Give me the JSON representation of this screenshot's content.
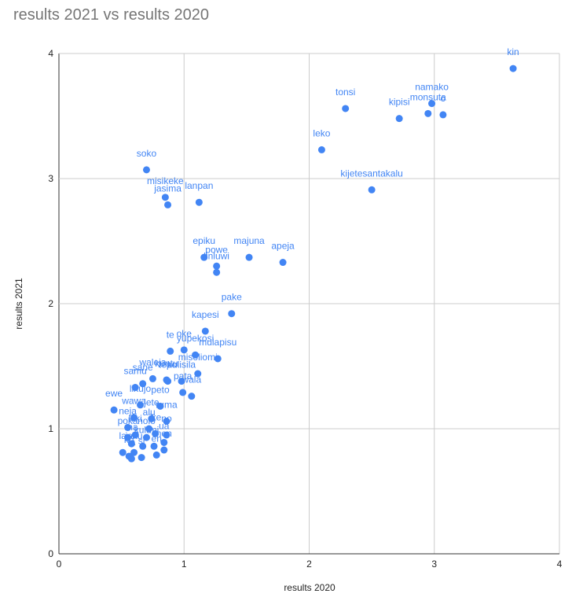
{
  "chart_data": {
    "type": "scatter",
    "title": "results 2021 vs results 2020",
    "xlabel": "results 2020",
    "ylabel": "results 2021",
    "xlim": [
      0,
      4
    ],
    "ylim": [
      0,
      4
    ],
    "x_ticks": [
      "0",
      "1",
      "2",
      "3",
      "4"
    ],
    "y_ticks": [
      "0",
      "1",
      "2",
      "3",
      "4"
    ],
    "grid": true,
    "point_color": "#4285f4",
    "points": [
      {
        "label": "kin",
        "x": 3.63,
        "y": 3.88
      },
      {
        "label": "namako",
        "x": 2.98,
        "y": 3.6
      },
      {
        "label": "monsuta",
        "x": 2.95,
        "y": 3.52
      },
      {
        "label": "o",
        "x": 3.07,
        "y": 3.51
      },
      {
        "label": "tonsi",
        "x": 2.29,
        "y": 3.56
      },
      {
        "label": "kipisi",
        "x": 2.72,
        "y": 3.48
      },
      {
        "label": "leko",
        "x": 2.1,
        "y": 3.23
      },
      {
        "label": "kijetesantakalu",
        "x": 2.5,
        "y": 2.91
      },
      {
        "label": "soko",
        "x": 0.7,
        "y": 3.07
      },
      {
        "label": "misikeke",
        "x": 0.85,
        "y": 2.85
      },
      {
        "label": "jasima",
        "x": 0.87,
        "y": 2.79
      },
      {
        "label": "lanpan",
        "x": 1.12,
        "y": 2.81
      },
      {
        "label": "epiku",
        "x": 1.16,
        "y": 2.37
      },
      {
        "label": "majuna",
        "x": 1.52,
        "y": 2.37
      },
      {
        "label": "apeja",
        "x": 1.79,
        "y": 2.33
      },
      {
        "label": "powe",
        "x": 1.26,
        "y": 2.3
      },
      {
        "label": "linluwi",
        "x": 1.26,
        "y": 2.25
      },
      {
        "label": "pake",
        "x": 1.38,
        "y": 1.92
      },
      {
        "label": "kapesi",
        "x": 1.17,
        "y": 1.78
      },
      {
        "label": "te",
        "x": 0.89,
        "y": 1.62
      },
      {
        "label": "oke",
        "x": 1.0,
        "y": 1.63
      },
      {
        "label": "yupekosi",
        "x": 1.09,
        "y": 1.59
      },
      {
        "label": "mulapisu",
        "x": 1.27,
        "y": 1.56
      },
      {
        "label": "misoliomi",
        "x": 1.11,
        "y": 1.44
      },
      {
        "label": "waleja",
        "x": 0.75,
        "y": 1.4
      },
      {
        "label": "tepo",
        "x": 0.87,
        "y": 1.38
      },
      {
        "label": "sane",
        "x": 0.67,
        "y": 1.36
      },
      {
        "label": "kuntu",
        "x": 0.86,
        "y": 1.39
      },
      {
        "label": "kulisila",
        "x": 0.98,
        "y": 1.38
      },
      {
        "label": "samu",
        "x": 0.61,
        "y": 1.33
      },
      {
        "label": "pata",
        "x": 0.99,
        "y": 1.29
      },
      {
        "label": "wala",
        "x": 1.06,
        "y": 1.26
      },
      {
        "label": "peto",
        "x": 0.81,
        "y": 1.18
      },
      {
        "label": "ewe",
        "x": 0.44,
        "y": 1.15
      },
      {
        "label": "likujo",
        "x": 0.65,
        "y": 1.19
      },
      {
        "label": "wawa",
        "x": 0.6,
        "y": 1.09
      },
      {
        "label": "jete",
        "x": 0.74,
        "y": 1.08
      },
      {
        "label": "ruma",
        "x": 0.86,
        "y": 1.06
      },
      {
        "label": "neja",
        "x": 0.55,
        "y": 1.01
      },
      {
        "label": "alu",
        "x": 0.72,
        "y": 1.0
      },
      {
        "label": "poka",
        "x": 0.55,
        "y": 0.93
      },
      {
        "label": "kiki",
        "x": 0.61,
        "y": 0.95
      },
      {
        "label": "nolo",
        "x": 0.7,
        "y": 0.93
      },
      {
        "label": "ike",
        "x": 0.77,
        "y": 0.96
      },
      {
        "label": "no",
        "x": 0.86,
        "y": 0.95
      },
      {
        "label": "ma",
        "x": 0.58,
        "y": 0.88
      },
      {
        "label": "kulu",
        "x": 0.67,
        "y": 0.86
      },
      {
        "label": "ua",
        "x": 0.84,
        "y": 0.89
      },
      {
        "label": "jaku",
        "x": 0.6,
        "y": 0.81
      },
      {
        "label": "mi",
        "x": 0.76,
        "y": 0.86
      },
      {
        "label": "nen",
        "x": 0.84,
        "y": 0.83
      },
      {
        "label": "la",
        "x": 0.51,
        "y": 0.81
      },
      {
        "label": "ku",
        "x": 0.56,
        "y": 0.78
      },
      {
        "label": "ta",
        "x": 0.58,
        "y": 0.76
      },
      {
        "label": "si",
        "x": 0.66,
        "y": 0.77
      },
      {
        "label": "en",
        "x": 0.78,
        "y": 0.79
      }
    ]
  }
}
